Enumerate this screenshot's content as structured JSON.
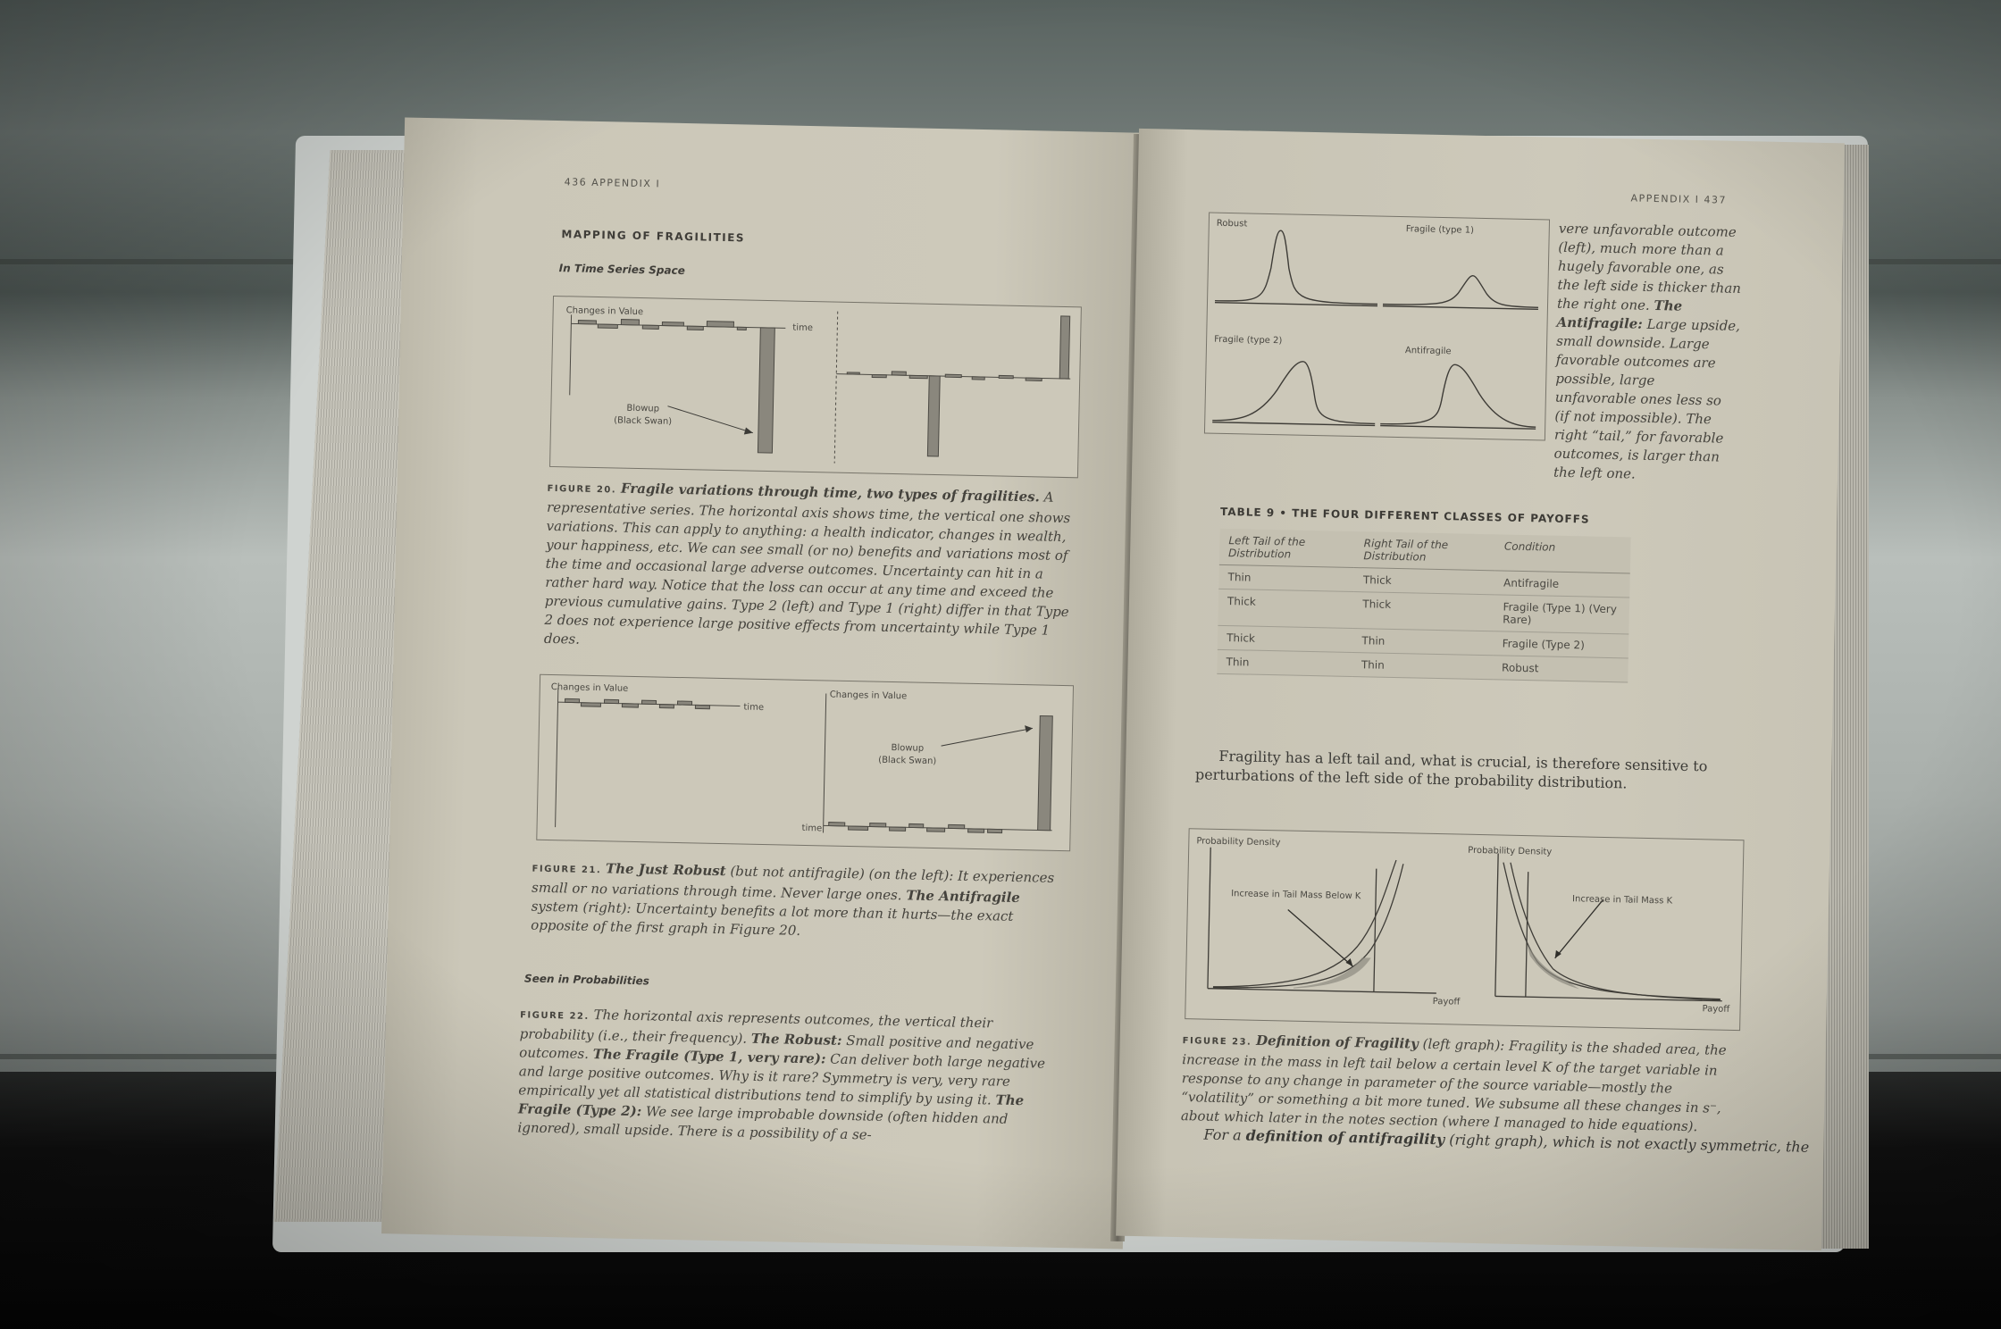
{
  "left_page": {
    "running_head": "436  APPENDIX I",
    "section_title": "MAPPING OF FRAGILITIES",
    "subsection_time": "In Time Series Space",
    "fig20": {
      "y_label": "Changes in Value",
      "time_label": "time",
      "blowup_label_1": "Blowup",
      "blowup_label_2": "(Black Swan)"
    },
    "fig20_caption": {
      "label": "FIGURE 20.",
      "title": "Fragile variations through time, two types of fragilities.",
      "text": "A representative series. The horizontal axis shows time, the vertical one shows variations. This can apply to anything: a health indicator, changes in wealth, your happiness, etc. We can see small (or no) benefits and variations most of the time and occasional large adverse outcomes. Uncertainty can hit in a rather hard way. Notice that the loss can occur at any time and exceed the previous cumulative gains. Type 2 (left) and Type 1 (right) differ in that Type 2 does not experience large positive effects from uncertainty while Type 1 does."
    },
    "fig21": {
      "left_y_label": "Changes in Value",
      "left_time_label": "time",
      "right_y_label": "Changes in Value",
      "right_time_label": "time",
      "blowup_label_1": "Blowup",
      "blowup_label_2": "(Black Swan)"
    },
    "fig21_caption": {
      "label": "FIGURE 21.",
      "title": "The Just Robust",
      "mid": "(but not antifragile) (on the left): It experiences small or no variations through time. Never large ones.",
      "title2": "The Antifragile",
      "text": "system (right): Uncertainty benefits a lot more than it hurts—the exact opposite of the first graph in Figure 20."
    },
    "subsection_prob": "Seen in Probabilities",
    "fig22_caption": {
      "label": "FIGURE 22.",
      "text1": "The horizontal axis represents outcomes, the vertical their probability (i.e., their frequency).",
      "robust": "The Robust:",
      "text2": "Small positive and negative outcomes.",
      "fragile1": "The Fragile (Type 1, very rare):",
      "text3": "Can deliver both large negative and large positive outcomes. Why is it rare? Symmetry is very, very rare empirically yet all statistical distributions tend to simplify by using it.",
      "fragile2": "The Fragile (Type 2):",
      "text4": "We see large improbable downside (often hidden and ignored), small upside. There is a possibility of a se-"
    }
  },
  "right_page": {
    "running_head": "APPENDIX I  437",
    "fig22": {
      "robust_label": "Robust",
      "fragile1_label": "Fragile (type 1)",
      "fragile2_label": "Fragile (type 2)",
      "antifragile_label": "Antifragile"
    },
    "fig22_continued": {
      "text1": "vere unfavorable outcome (left), much more than a hugely favorable one, as the left side is thicker than the right one.",
      "antifragile": "The Antifragile:",
      "text2": "Large upside, small downside. Large favorable outcomes are possible, large unfavorable ones less so (if not impossible). The right “tail,” for favorable outcomes, is larger than the left one."
    },
    "table9": {
      "title": "TABLE 9  •  THE FOUR DIFFERENT CLASSES OF PAYOFFS",
      "headers": [
        "Left Tail of the Distribution",
        "Right Tail of the Distribution",
        "Condition"
      ],
      "rows": [
        [
          "Thin",
          "Thick",
          "Antifragile"
        ],
        [
          "Thick",
          "Thick",
          "Fragile (Type 1) (Very Rare)"
        ],
        [
          "Thick",
          "Thin",
          "Fragile (Type 2)"
        ],
        [
          "Thin",
          "Thin",
          "Robust"
        ]
      ]
    },
    "paragraph": "Fragility has a left tail and, what is crucial, is therefore sensitive to perturbations of the left side of the probability distribution.",
    "fig23": {
      "left_y_label": "Probability Density",
      "left_annotation": "Increase in Tail Mass Below K",
      "left_x_label": "Payoff",
      "right_y_label": "Probability Density",
      "right_annotation": "Increase in Tail Mass K",
      "right_x_label": "Payoff"
    },
    "fig23_caption": {
      "label": "FIGURE 23.",
      "title": "Definition of Fragility",
      "text": "(left graph): Fragility is the shaded area, the increase in the mass in left tail below a certain level K of the target variable in response to any change in parameter of the source variable—mostly the “volatility” or something a bit more tuned. We subsume all these changes in s⁻, about which later in the notes section (where I managed to hide equations)."
    },
    "last_line_start": "For a",
    "last_line_bold": "definition of antifragility",
    "last_line_end": "(right graph), which is not exactly symmetric, the"
  }
}
